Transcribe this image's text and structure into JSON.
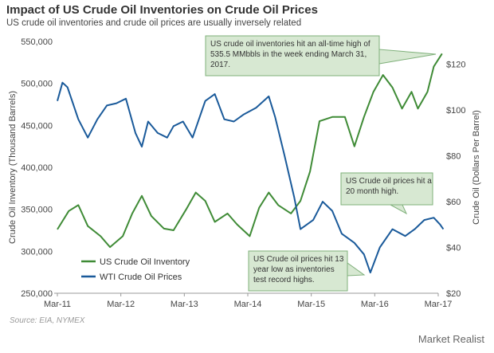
{
  "title": "Impact of US Crude Oil Inventories on Crude Oil Prices",
  "subtitle": "US crude oil inventories and crude oil prices are usually inversely related",
  "source": "Source: EIA, NYMEX",
  "brand": "Market Realist",
  "colors": {
    "inventory": "#3f8b36",
    "price": "#1a5a9a",
    "annotation_bg": "#d7e8d2",
    "annotation_border": "#7fb07a"
  },
  "chart_data": {
    "type": "line",
    "x_categories": [
      "Mar-11",
      "Mar-12",
      "Mar-13",
      "Mar-14",
      "Mar-15",
      "Mar-16",
      "Mar-17"
    ],
    "ylabel_left": "Crude Oil Inventory  (Thousand  Barrels)",
    "ylabel_right": "Crude Oil (Dollars Per Barrel)",
    "ylim_left": [
      250000,
      550000
    ],
    "ylim_right": [
      20,
      130
    ],
    "yticks_left": [
      "250,000",
      "300,000",
      "350,000",
      "400,000",
      "450,000",
      "500,000",
      "550,000"
    ],
    "yticks_right": [
      "$20",
      "$40",
      "$60",
      "$80",
      "$100",
      "$120"
    ],
    "legend_position": "bottom-left",
    "series": [
      {
        "name": "US Crude Oil Inventory",
        "axis": "left",
        "x": [
          2011.17,
          2011.35,
          2011.5,
          2011.65,
          2011.85,
          2012.0,
          2012.2,
          2012.35,
          2012.5,
          2012.65,
          2012.85,
          2013.0,
          2013.2,
          2013.35,
          2013.5,
          2013.65,
          2013.85,
          2014.0,
          2014.2,
          2014.35,
          2014.5,
          2014.65,
          2014.85,
          2015.0,
          2015.15,
          2015.3,
          2015.5,
          2015.7,
          2015.85,
          2016.0,
          2016.15,
          2016.3,
          2016.45,
          2016.6,
          2016.75,
          2016.85,
          2017.0,
          2017.1,
          2017.23
        ],
        "values": [
          326000,
          348000,
          355000,
          330000,
          318000,
          305000,
          318000,
          345000,
          366000,
          342000,
          327000,
          325000,
          350000,
          370000,
          360000,
          335000,
          345000,
          332000,
          318000,
          352000,
          370000,
          355000,
          345000,
          360000,
          395000,
          455000,
          460000,
          460000,
          425000,
          460000,
          490000,
          510000,
          495000,
          470000,
          490000,
          470000,
          490000,
          520000,
          535500
        ]
      },
      {
        "name": "WTI Crude Oil Prices",
        "axis": "right",
        "x": [
          2011.17,
          2011.25,
          2011.33,
          2011.5,
          2011.65,
          2011.8,
          2011.95,
          2012.1,
          2012.25,
          2012.4,
          2012.5,
          2012.6,
          2012.75,
          2012.9,
          2013.0,
          2013.15,
          2013.3,
          2013.5,
          2013.65,
          2013.8,
          2013.95,
          2014.1,
          2014.3,
          2014.5,
          2014.6,
          2014.75,
          2014.9,
          2015.0,
          2015.1,
          2015.2,
          2015.35,
          2015.5,
          2015.65,
          2015.75,
          2015.85,
          2016.0,
          2016.1,
          2016.25,
          2016.45,
          2016.65,
          2016.8,
          2016.95,
          2017.1,
          2017.2,
          2017.25
        ],
        "values": [
          104,
          112,
          110,
          96,
          88,
          96,
          102,
          103,
          105,
          90,
          84,
          95,
          90,
          88,
          93,
          95,
          88,
          104,
          107,
          96,
          95,
          98,
          101,
          106,
          97,
          80,
          62,
          48,
          50,
          52,
          60,
          56,
          46,
          44,
          42,
          37,
          29,
          40,
          48,
          45,
          48,
          52,
          53,
          50,
          48
        ]
      }
    ],
    "annotations": [
      "US crude oil inventories hit an all-time high of 535.5 MMbbls in the week ending March 31, 2017.",
      "US Crude oil prices hit a 20 month high.",
      "US Crude oil prices hit 13 year low as inventories test record highs."
    ]
  }
}
